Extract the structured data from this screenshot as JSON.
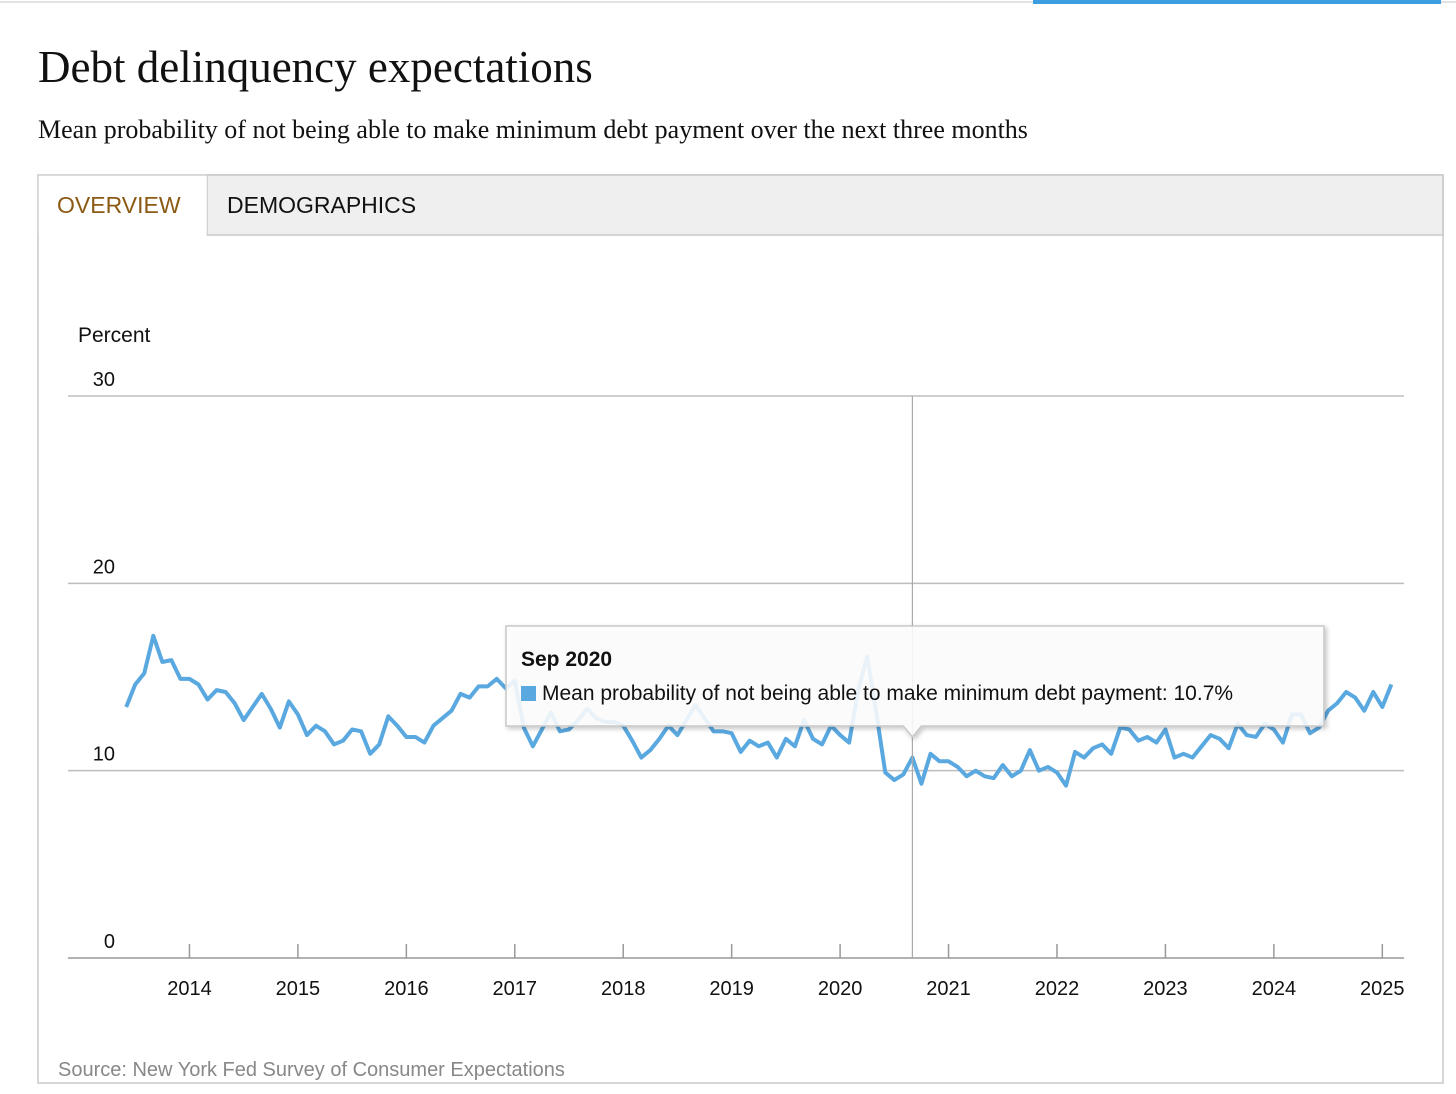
{
  "header": {
    "title": "Debt delinquency expectations",
    "subtitle": "Mean probability of not being able to make minimum debt payment over the next three months"
  },
  "tabs": [
    "OVERVIEW",
    "DEMOGRAPHICS"
  ],
  "chart_data": {
    "type": "line",
    "y_label": "Percent",
    "x": [
      "Jun 2013",
      "Jul 2013",
      "Aug 2013",
      "Sep 2013",
      "Oct 2013",
      "Nov 2013",
      "Dec 2013",
      "Jan 2014",
      "Feb 2014",
      "Mar 2014",
      "Apr 2014",
      "May 2014",
      "Jun 2014",
      "Jul 2014",
      "Aug 2014",
      "Sep 2014",
      "Oct 2014",
      "Nov 2014",
      "Dec 2014",
      "Jan 2015",
      "Feb 2015",
      "Mar 2015",
      "Apr 2015",
      "May 2015",
      "Jun 2015",
      "Jul 2015",
      "Aug 2015",
      "Sep 2015",
      "Oct 2015",
      "Nov 2015",
      "Dec 2015",
      "Jan 2016",
      "Feb 2016",
      "Mar 2016",
      "Apr 2016",
      "May 2016",
      "Jun 2016",
      "Jul 2016",
      "Aug 2016",
      "Sep 2016",
      "Oct 2016",
      "Nov 2016",
      "Dec 2016",
      "Jan 2017",
      "Feb 2017",
      "Mar 2017",
      "Apr 2017",
      "May 2017",
      "Jun 2017",
      "Jul 2017",
      "Aug 2017",
      "Sep 2017",
      "Oct 2017",
      "Nov 2017",
      "Dec 2017",
      "Jan 2018",
      "Feb 2018",
      "Mar 2018",
      "Apr 2018",
      "May 2018",
      "Jun 2018",
      "Jul 2018",
      "Aug 2018",
      "Sep 2018",
      "Oct 2018",
      "Nov 2018",
      "Dec 2018",
      "Jan 2019",
      "Feb 2019",
      "Mar 2019",
      "Apr 2019",
      "May 2019",
      "Jun 2019",
      "Jul 2019",
      "Aug 2019",
      "Sep 2019",
      "Oct 2019",
      "Nov 2019",
      "Dec 2019",
      "Jan 2020",
      "Feb 2020",
      "Mar 2020",
      "Apr 2020",
      "May 2020",
      "Jun 2020",
      "Jul 2020",
      "Aug 2020",
      "Sep 2020",
      "Oct 2020",
      "Nov 2020",
      "Dec 2020",
      "Jan 2021",
      "Feb 2021",
      "Mar 2021",
      "Apr 2021",
      "May 2021",
      "Jun 2021",
      "Jul 2021",
      "Aug 2021",
      "Sep 2021",
      "Oct 2021",
      "Nov 2021",
      "Dec 2021",
      "Jan 2022",
      "Feb 2022",
      "Mar 2022",
      "Apr 2022",
      "May 2022",
      "Jun 2022",
      "Jul 2022",
      "Aug 2022",
      "Sep 2022",
      "Oct 2022",
      "Nov 2022",
      "Dec 2022",
      "Jan 2023",
      "Feb 2023",
      "Mar 2023",
      "Apr 2023",
      "May 2023",
      "Jun 2023",
      "Jul 2023",
      "Aug 2023",
      "Sep 2023",
      "Oct 2023",
      "Nov 2023",
      "Dec 2023",
      "Jan 2024",
      "Feb 2024",
      "Mar 2024",
      "Apr 2024",
      "May 2024",
      "Jun 2024",
      "Jul 2024",
      "Aug 2024",
      "Sep 2024",
      "Oct 2024",
      "Nov 2024",
      "Dec 2024",
      "Jan 2025",
      "Feb 2025"
    ],
    "series": [
      {
        "name": "Mean probability of not being able to make minimum debt payment",
        "color": "#5aa8e0",
        "values": [
          13.4,
          14.6,
          15.2,
          17.2,
          15.8,
          15.9,
          14.9,
          14.9,
          14.6,
          13.8,
          14.3,
          14.2,
          13.6,
          12.7,
          13.4,
          14.1,
          13.3,
          12.3,
          13.7,
          13.0,
          11.9,
          12.4,
          12.1,
          11.4,
          11.6,
          12.2,
          12.1,
          10.9,
          11.4,
          12.9,
          12.4,
          11.8,
          11.8,
          11.5,
          12.4,
          12.8,
          13.2,
          14.1,
          13.9,
          14.5,
          14.5,
          14.9,
          14.4,
          14.8,
          12.3,
          11.3,
          12.2,
          13.1,
          12.1,
          12.2,
          12.7,
          13.3,
          12.8,
          12.6,
          12.6,
          12.4,
          11.6,
          10.7,
          11.1,
          11.7,
          12.4,
          11.9,
          12.7,
          13.5,
          12.8,
          12.1,
          12.1,
          12.0,
          11.0,
          11.6,
          11.3,
          11.5,
          10.7,
          11.7,
          11.3,
          12.7,
          11.7,
          11.4,
          12.4,
          11.9,
          11.5,
          14.3,
          16.1,
          13.1,
          9.9,
          9.5,
          9.8,
          10.7,
          9.3,
          10.9,
          10.5,
          10.5,
          10.2,
          9.7,
          10.0,
          9.7,
          9.6,
          10.3,
          9.7,
          10.0,
          11.1,
          10.0,
          10.2,
          9.9,
          9.2,
          11.0,
          10.7,
          11.2,
          11.4,
          10.9,
          12.3,
          12.2,
          11.6,
          11.8,
          11.5,
          12.2,
          10.7,
          10.9,
          10.7,
          11.3,
          11.9,
          11.7,
          11.2,
          12.5,
          11.9,
          11.8,
          12.5,
          12.2,
          11.5,
          13.0,
          13.0,
          12.0,
          12.3,
          13.2,
          13.6,
          14.2,
          13.9,
          13.2,
          14.2,
          13.4,
          14.6
        ]
      }
    ],
    "xlim": [
      2012.88,
      2025.2
    ],
    "xticks": [
      2014,
      2015,
      2016,
      2017,
      2018,
      2019,
      2020,
      2021,
      2022,
      2023,
      2024,
      2025
    ],
    "ylim": [
      0,
      30
    ],
    "yticks": [
      0,
      10,
      20,
      30
    ],
    "grid": true,
    "tooltip": {
      "x": "Sep 2020",
      "text": "Mean probability of not being able to make minimum debt payment: 10.7%"
    },
    "source": "Source: New York Fed Survey of Consumer Expectations"
  }
}
